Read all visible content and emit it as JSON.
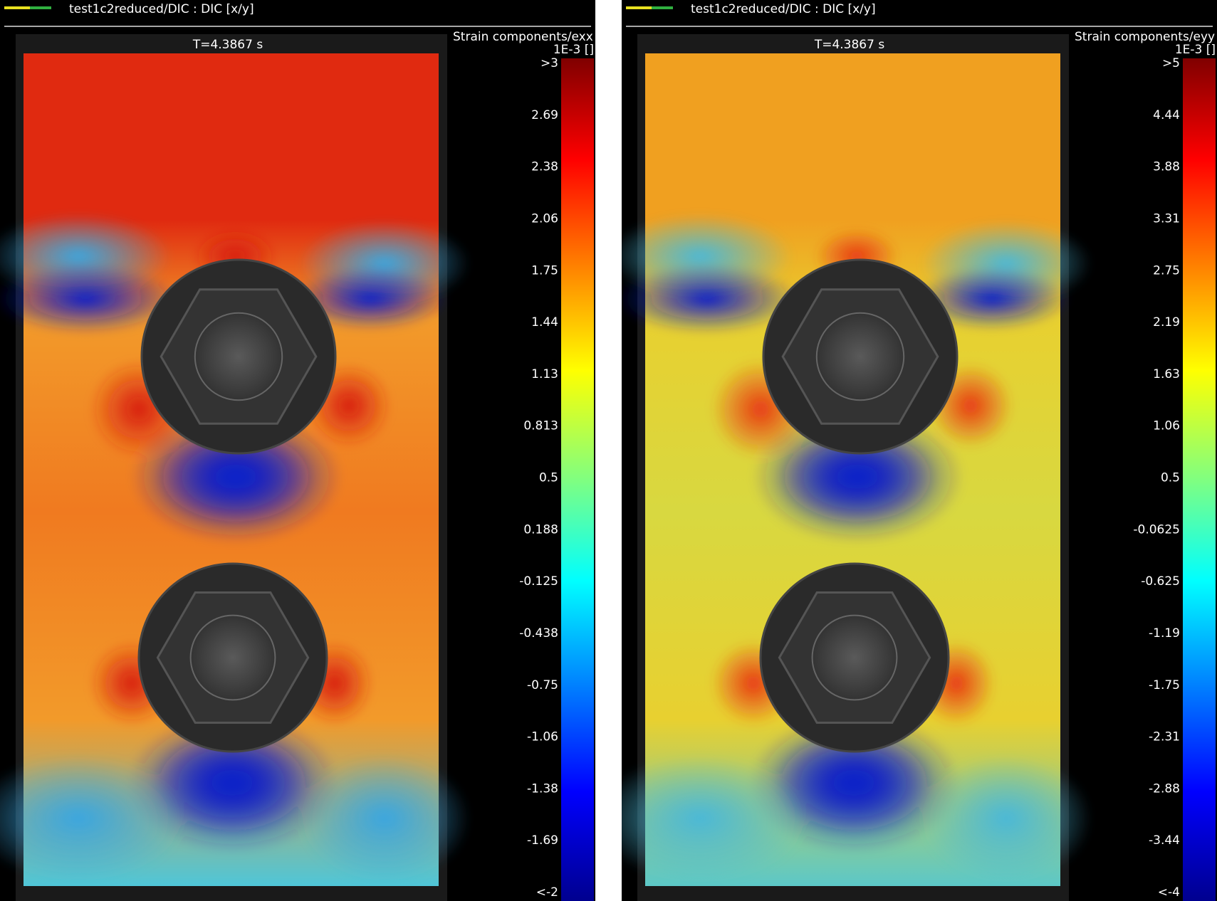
{
  "panels": [
    {
      "title": "test1c2reduced/DIC : DIC [x/y]",
      "time": "T=4.3867 s",
      "colorbar_title": "Strain components/exx",
      "colorbar_unit": "1E-3 []",
      "colorbar_labels": [
        ">3",
        "2.69",
        "2.38",
        "2.06",
        "1.75",
        "1.44",
        "1.13",
        "0.813",
        "0.5",
        "0.188",
        "-0.125",
        "-0.438",
        "-0.75",
        "-1.06",
        "-1.38",
        "-1.69",
        "<-2"
      ]
    },
    {
      "title": "test1c2reduced/DIC : DIC [x/y]",
      "time": "T=4.3867 s",
      "colorbar_title": "Strain components/eyy",
      "colorbar_unit": "1E-3 []",
      "colorbar_labels": [
        ">5",
        "4.44",
        "3.88",
        "3.31",
        "2.75",
        "2.19",
        "1.63",
        "1.06",
        "0.5",
        "-0.0625",
        "-0.625",
        "-1.19",
        "-1.75",
        "-2.31",
        "-2.88",
        "-3.44",
        "<-4"
      ]
    }
  ]
}
